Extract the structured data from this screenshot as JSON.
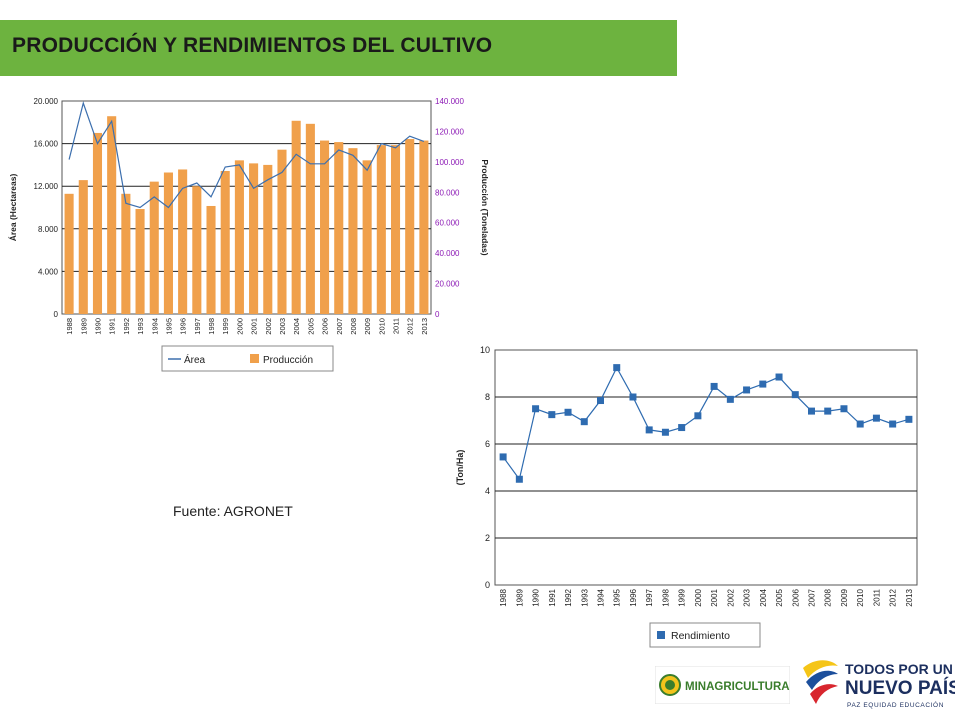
{
  "header": {
    "title": "PRODUCCIÓN Y RENDIMIENTOS DEL CULTIVO"
  },
  "source": "Fuente: AGRONET",
  "logos": {
    "minagricultura": "MINAGRICULTURA",
    "todos_line1": "TODOS POR UN",
    "todos_line2": "NUEVO PAÍS",
    "todos_tagline": "PAZ  EQUIDAD  EDUCACIÓN"
  },
  "colors": {
    "header_green": "#6db33f",
    "bar_orange": "#f0a04b",
    "area_line": "#3c6fae",
    "right_axis_purple": "#8c1ab5",
    "rendimiento_blue": "#2e6bb0"
  },
  "chart_data": [
    {
      "type": "bar",
      "combo_line": true,
      "ylabel": "Área (Hectareas)",
      "y2label": "Producción (Toneladas)",
      "ylim": [
        0,
        20000
      ],
      "y2lim": [
        0,
        140000
      ],
      "yticks": [
        "0",
        "4.000",
        "8.000",
        "12.000",
        "16.000",
        "20.000"
      ],
      "y2ticks": [
        "0",
        "20.000",
        "40.000",
        "60.000",
        "80.000",
        "100.000",
        "120.000",
        "140.000"
      ],
      "categories": [
        "1988",
        "1989",
        "1990",
        "1991",
        "1992",
        "1993",
        "1994",
        "1995",
        "1996",
        "1997",
        "1998",
        "1999",
        "2000",
        "2001",
        "2002",
        "2003",
        "2004",
        "2005",
        "2006",
        "2007",
        "2008",
        "2009",
        "2010",
        "2011",
        "2012",
        "2013"
      ],
      "legend_position": "bottom",
      "series": [
        {
          "name": "Área",
          "kind": "line",
          "axis": "left",
          "values": [
            14500,
            19800,
            16000,
            18100,
            10400,
            10000,
            11000,
            10000,
            11800,
            12300,
            11000,
            13800,
            14000,
            11800,
            12600,
            13300,
            15000,
            14100,
            14100,
            15400,
            14900,
            13500,
            16000,
            15600,
            16700,
            16200
          ]
        },
        {
          "name": "Producción",
          "kind": "bar",
          "axis": "right",
          "values": [
            79000,
            88000,
            119000,
            130000,
            79000,
            69000,
            87000,
            93000,
            95000,
            84000,
            71000,
            94000,
            101000,
            99000,
            98000,
            108000,
            127000,
            125000,
            114000,
            113000,
            109000,
            101000,
            111000,
            111000,
            115000,
            114000
          ]
        }
      ]
    },
    {
      "type": "line",
      "ylabel": "(Ton/Ha)",
      "ylim": [
        0,
        10
      ],
      "yticks": [
        "0",
        "2",
        "4",
        "6",
        "8",
        "10"
      ],
      "categories": [
        "1988",
        "1989",
        "1990",
        "1991",
        "1992",
        "1993",
        "1994",
        "1995",
        "1996",
        "1997",
        "1998",
        "1999",
        "2000",
        "2001",
        "2002",
        "2003",
        "2004",
        "2005",
        "2006",
        "2007",
        "2008",
        "2009",
        "2010",
        "2011",
        "2012",
        "2013"
      ],
      "legend_position": "bottom",
      "series": [
        {
          "name": "Rendimiento",
          "values": [
            5.45,
            4.5,
            7.5,
            7.25,
            7.35,
            6.95,
            7.85,
            9.25,
            8.0,
            6.6,
            6.5,
            6.7,
            7.2,
            8.45,
            7.9,
            8.3,
            8.55,
            8.85,
            8.1,
            7.4,
            7.4,
            7.5,
            6.85,
            7.1,
            6.85,
            7.05
          ]
        }
      ]
    }
  ]
}
